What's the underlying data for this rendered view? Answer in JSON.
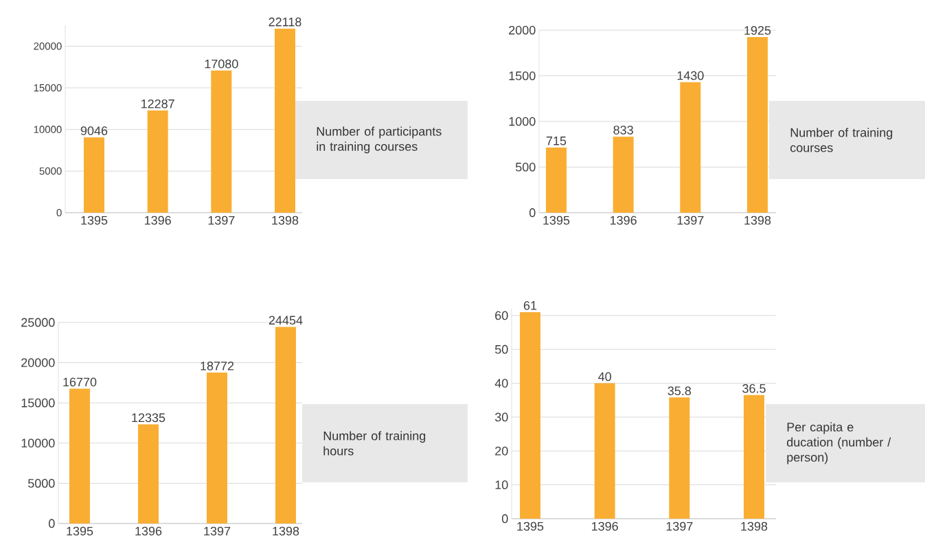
{
  "chart_data": [
    {
      "type": "bar",
      "annotations": [
        "Number of participants in training courses"
      ],
      "categories": [
        "1395",
        "1396",
        "1397",
        "1398"
      ],
      "values": [
        9046,
        12287,
        17080,
        22118
      ],
      "color": "#f9ae33",
      "ylim": [
        0,
        22500
      ],
      "yticks": [
        0,
        5000,
        10000,
        15000,
        20000
      ],
      "grid": "y",
      "data_labels": true
    },
    {
      "type": "bar",
      "annotations": [
        "Number of training courses"
      ],
      "categories": [
        "1395",
        "1396",
        "1397",
        "1398"
      ],
      "values": [
        715,
        833,
        1430,
        1925
      ],
      "color": "#f9ae33",
      "ylim": [
        0,
        2000
      ],
      "yticks": [
        0,
        500,
        1000,
        1500,
        2000
      ],
      "grid": "y",
      "data_labels": true
    },
    {
      "type": "bar",
      "annotations": [
        "Number of training hours"
      ],
      "categories": [
        "1395",
        "1396",
        "1397",
        "1398"
      ],
      "values": [
        16770,
        12335,
        18772,
        24454
      ],
      "color": "#f9ae33",
      "ylim": [
        0,
        25000
      ],
      "yticks": [
        0,
        5000,
        10000,
        15000,
        20000,
        25000
      ],
      "grid": "y",
      "data_labels": true
    },
    {
      "type": "bar",
      "annotations": [
        "Per capita e ducation (number / person)"
      ],
      "categories": [
        "1395",
        "1396",
        "1397",
        "1398"
      ],
      "values": [
        61,
        40,
        35.8,
        36.5
      ],
      "color": "#f9ae33",
      "ylim": [
        0,
        62
      ],
      "yticks": [
        0,
        10,
        20,
        30,
        40,
        50,
        60
      ],
      "grid": "y",
      "data_labels": true
    }
  ]
}
